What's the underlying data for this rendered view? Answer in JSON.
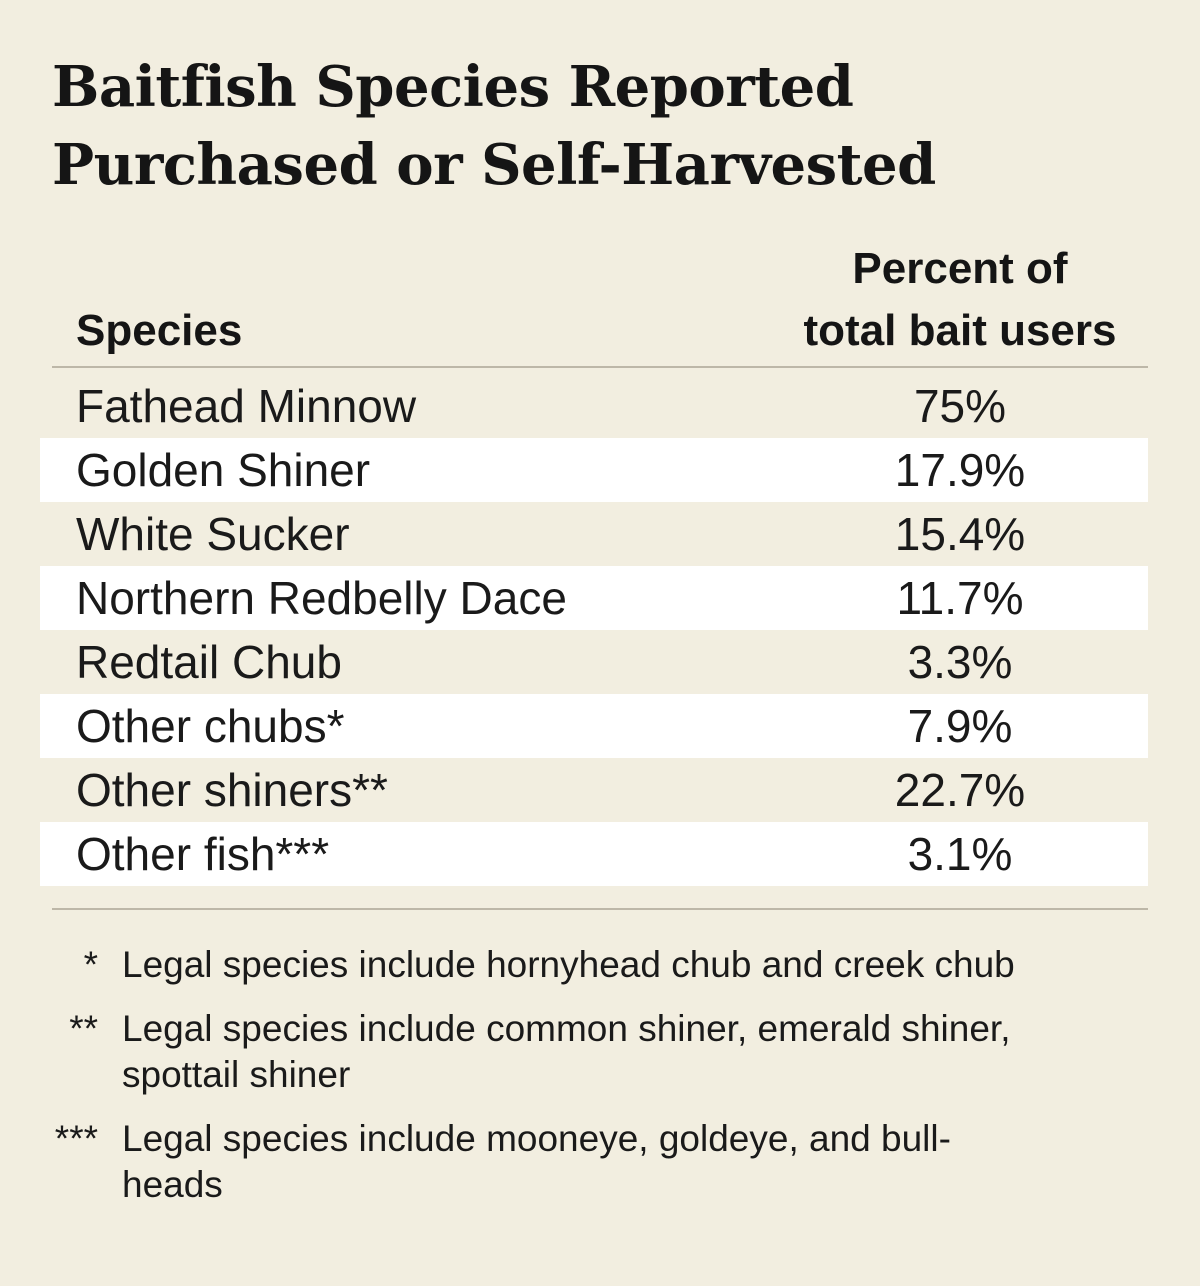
{
  "chart_data": {
    "type": "table",
    "title": "Baitfish Species Reported Purchased or Self-Harvested",
    "title_lines": [
      "Baitfish Species Reported",
      "Purchased or Self-Harvested"
    ],
    "columns": {
      "species": "Species",
      "percent_lines": [
        "Percent of",
        "total bait users"
      ]
    },
    "rows": [
      {
        "species": "Fathead Minnow",
        "percent": "75%"
      },
      {
        "species": "Golden Shiner",
        "percent": "17.9%"
      },
      {
        "species": "White Sucker",
        "percent": "15.4%"
      },
      {
        "species": "Northern Redbelly Dace",
        "percent": "11.7%"
      },
      {
        "species": "Redtail Chub",
        "percent": "3.3%"
      },
      {
        "species": "Other chubs*",
        "percent": "7.9%"
      },
      {
        "species": "Other shiners**",
        "percent": "22.7%"
      },
      {
        "species": "Other fish***",
        "percent": "3.1%"
      }
    ],
    "values": [
      75,
      17.9,
      15.4,
      11.7,
      3.3,
      7.9,
      22.7,
      3.1
    ],
    "footnotes": [
      {
        "mark": "*",
        "lines": [
          "Legal species include hornyhead chub and creek chub"
        ]
      },
      {
        "mark": "**",
        "lines": [
          "Legal species include common shiner, emerald shiner,",
          "spottail shiner"
        ]
      },
      {
        "mark": "***",
        "lines": [
          "Legal species include mooneye, goldeye, and bull-",
          "heads"
        ]
      }
    ]
  },
  "colors": {
    "background": "#f2eee0",
    "alt_row": "#ffffff",
    "text": "#1a1a1a",
    "rule": "#bdb7a8"
  }
}
